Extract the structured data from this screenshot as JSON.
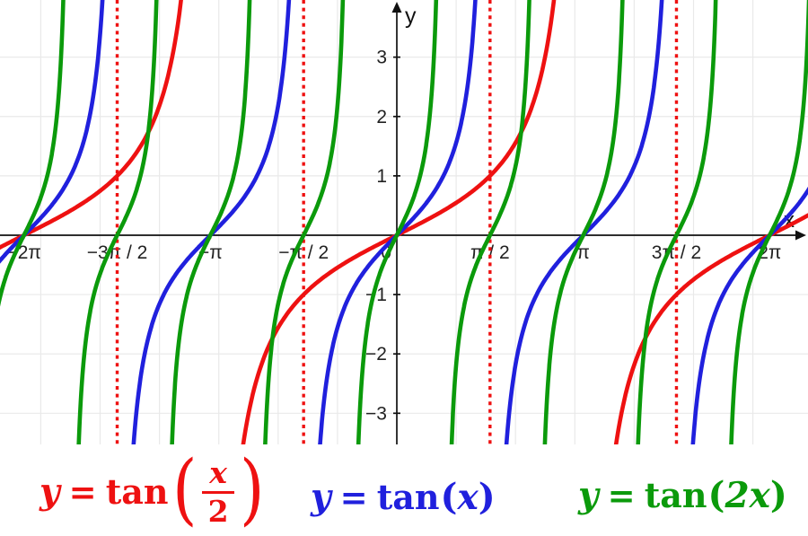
{
  "chart_data": {
    "type": "line",
    "title": "",
    "xlabel": "x",
    "ylabel": "y",
    "origin_label": "0",
    "xlim": [
      -6.687,
      6.929
    ],
    "ylim": [
      -3.525,
      3.963
    ],
    "grid": {
      "show": true,
      "spacing_x": 1,
      "spacing_y": 1,
      "color": "#e9e9e9"
    },
    "axis_color": "#111111",
    "tick_label_color": "#222222",
    "x_ticks": [
      {
        "value": -6.28319,
        "label": "−2π"
      },
      {
        "value": -4.71239,
        "label": "−3π / 2"
      },
      {
        "value": -3.14159,
        "label": "−π"
      },
      {
        "value": -1.5708,
        "label": "−π / 2"
      },
      {
        "value": 0,
        "label": "0"
      },
      {
        "value": 1.5708,
        "label": "π / 2"
      },
      {
        "value": 3.14159,
        "label": "π"
      },
      {
        "value": 4.71239,
        "label": "3π / 2"
      },
      {
        "value": 6.28319,
        "label": "2π"
      }
    ],
    "y_ticks": [
      {
        "value": 3,
        "label": "3"
      },
      {
        "value": 2,
        "label": "2"
      },
      {
        "value": 1,
        "label": "1"
      },
      {
        "value": -1,
        "label": "−1"
      },
      {
        "value": -2,
        "label": "−2"
      },
      {
        "value": -3,
        "label": "−3"
      }
    ],
    "asymptote_lines": {
      "style": "dotted",
      "color": "#ee1111",
      "stroke_width": 3.4,
      "x_values": [
        -4.71239,
        -1.5708,
        1.5708,
        4.71239
      ],
      "at_labels": [
        "−3π / 2",
        "−π / 2",
        "π / 2",
        "3π / 2"
      ]
    },
    "series": [
      {
        "name": "y = tan(x/2)",
        "expression": "tan(x/2)",
        "coefficient": 0.5,
        "period": "2π",
        "color": "#ee1111",
        "stroke_width": 4.6
      },
      {
        "name": "y = tan(x)",
        "expression": "tan(x)",
        "coefficient": 1,
        "period": "π",
        "color": "#2020dd",
        "stroke_width": 4.6
      },
      {
        "name": "y = tan(2x)",
        "expression": "tan(2x)",
        "coefficient": 2,
        "period": "π/2",
        "color": "#0b9a0b",
        "stroke_width": 4.6
      }
    ],
    "legend_position": "below"
  },
  "legend": {
    "formulas": [
      {
        "id": "tan-half-x",
        "color": "#ee1111",
        "lhs": "y",
        "eq": "=",
        "fn": "tan",
        "open": "(",
        "numerator": "x",
        "denominator": "2",
        "close": ")"
      },
      {
        "id": "tan-x",
        "color": "#2020dd",
        "lhs": "y",
        "eq": "=",
        "fn": "tan",
        "open": "(",
        "arg": "x",
        "close": ")"
      },
      {
        "id": "tan-2x",
        "color": "#0b9a0b",
        "lhs": "y",
        "eq": "=",
        "fn": "tan",
        "open": "(",
        "arg": "2x",
        "close": ")"
      }
    ]
  }
}
